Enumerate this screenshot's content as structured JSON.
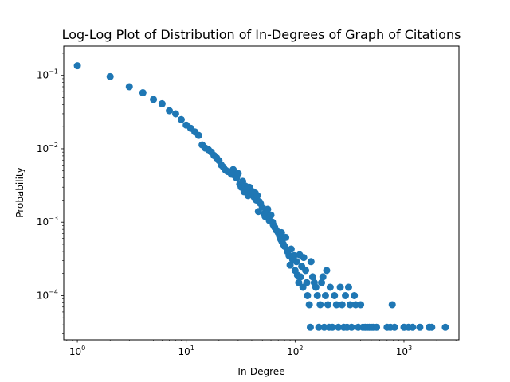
{
  "chart_data": {
    "type": "scatter",
    "title": "Log-Log Plot of Distribution of In-Degrees of Graph of Citations",
    "xlabel": "In-Degree",
    "ylabel": "Probability",
    "xscale": "log",
    "yscale": "log",
    "xlim": [
      0.75,
      3200
    ],
    "ylim": [
      2.5e-05,
      0.25
    ],
    "grid": false,
    "marker_color": "#1f77b4",
    "x_ticks": [
      {
        "base": "10",
        "exp": "0",
        "value": 1
      },
      {
        "base": "10",
        "exp": "1",
        "value": 10
      },
      {
        "base": "10",
        "exp": "2",
        "value": 100
      },
      {
        "base": "10",
        "exp": "3",
        "value": 1000
      }
    ],
    "y_ticks": [
      {
        "base": "10",
        "exp": "−4",
        "value": 0.0001
      },
      {
        "base": "10",
        "exp": "−3",
        "value": 0.001
      },
      {
        "base": "10",
        "exp": "−2",
        "value": 0.01
      },
      {
        "base": "10",
        "exp": "−1",
        "value": 0.1
      }
    ],
    "points": [
      [
        1,
        0.135
      ],
      [
        2,
        0.096
      ],
      [
        3,
        0.07
      ],
      [
        4,
        0.058
      ],
      [
        5,
        0.047
      ],
      [
        6,
        0.041
      ],
      [
        7,
        0.033
      ],
      [
        8,
        0.03
      ],
      [
        9,
        0.025
      ],
      [
        10,
        0.021
      ],
      [
        11,
        0.019
      ],
      [
        12,
        0.017
      ],
      [
        13,
        0.0152
      ],
      [
        14,
        0.0113
      ],
      [
        15,
        0.0102
      ],
      [
        16,
        0.0097
      ],
      [
        17,
        0.009
      ],
      [
        18,
        0.0081
      ],
      [
        19,
        0.0075
      ],
      [
        20,
        0.0069
      ],
      [
        21,
        0.006
      ],
      [
        22,
        0.0056
      ],
      [
        23,
        0.0051
      ],
      [
        24,
        0.0049
      ],
      [
        25,
        0.0048
      ],
      [
        26,
        0.0045
      ],
      [
        27,
        0.0052
      ],
      [
        28,
        0.0043
      ],
      [
        29,
        0.004
      ],
      [
        30,
        0.0046
      ],
      [
        31,
        0.0033
      ],
      [
        32,
        0.003
      ],
      [
        33,
        0.0036
      ],
      [
        34,
        0.0026
      ],
      [
        35,
        0.0031
      ],
      [
        36,
        0.0028
      ],
      [
        37,
        0.0023
      ],
      [
        38,
        0.003
      ],
      [
        39,
        0.0025
      ],
      [
        40,
        0.0024
      ],
      [
        41,
        0.0026
      ],
      [
        42,
        0.0022
      ],
      [
        43,
        0.0025
      ],
      [
        44,
        0.002
      ],
      [
        45,
        0.0023
      ],
      [
        46,
        0.0014
      ],
      [
        47,
        0.0019
      ],
      [
        48,
        0.0018
      ],
      [
        50,
        0.0016
      ],
      [
        52,
        0.0013
      ],
      [
        53,
        0.0012
      ],
      [
        55,
        0.0014
      ],
      [
        56,
        0.0015
      ],
      [
        58,
        0.00105
      ],
      [
        60,
        0.00125
      ],
      [
        62,
        0.001
      ],
      [
        63,
        0.00092
      ],
      [
        65,
        0.00085
      ],
      [
        67,
        0.00078
      ],
      [
        70,
        0.00072
      ],
      [
        72,
        0.00065
      ],
      [
        74,
        0.00058
      ],
      [
        76,
        0.00054
      ],
      [
        78,
        0.0005
      ],
      [
        80,
        0.00047
      ],
      [
        75,
        0.00072
      ],
      [
        85,
        0.0004
      ],
      [
        82,
        0.00062
      ],
      [
        88,
        0.00035
      ],
      [
        90,
        0.00026
      ],
      [
        92,
        0.00043
      ],
      [
        95,
        0.00031
      ],
      [
        98,
        0.00035
      ],
      [
        100,
        0.00022
      ],
      [
        103,
        0.00029
      ],
      [
        105,
        0.00019
      ],
      [
        108,
        0.00015
      ],
      [
        110,
        0.00036
      ],
      [
        112,
        0.00018
      ],
      [
        115,
        0.00025
      ],
      [
        118,
        0.00013
      ],
      [
        120,
        0.00033
      ],
      [
        125,
        0.00022
      ],
      [
        128,
        0.00015
      ],
      [
        130,
        0.0001
      ],
      [
        135,
        7.5e-05
      ],
      [
        138,
        3.7e-05
      ],
      [
        140,
        0.00029
      ],
      [
        145,
        0.00018
      ],
      [
        150,
        0.00015
      ],
      [
        155,
        0.00013
      ],
      [
        160,
        0.0001
      ],
      [
        165,
        3.7e-05
      ],
      [
        170,
        7.5e-05
      ],
      [
        175,
        0.00015
      ],
      [
        180,
        0.00018
      ],
      [
        185,
        3.7e-05
      ],
      [
        190,
        0.0001
      ],
      [
        195,
        0.00022
      ],
      [
        200,
        7.5e-05
      ],
      [
        205,
        3.7e-05
      ],
      [
        210,
        0.00013
      ],
      [
        220,
        3.7e-05
      ],
      [
        230,
        0.0001
      ],
      [
        240,
        7.5e-05
      ],
      [
        250,
        3.7e-05
      ],
      [
        260,
        0.00013
      ],
      [
        270,
        7.5e-05
      ],
      [
        280,
        3.7e-05
      ],
      [
        290,
        0.0001
      ],
      [
        300,
        3.7e-05
      ],
      [
        310,
        0.00013
      ],
      [
        320,
        7.5e-05
      ],
      [
        330,
        3.7e-05
      ],
      [
        350,
        0.0001
      ],
      [
        360,
        7.5e-05
      ],
      [
        380,
        3.7e-05
      ],
      [
        400,
        7.5e-05
      ],
      [
        420,
        3.7e-05
      ],
      [
        440,
        3.7e-05
      ],
      [
        460,
        3.7e-05
      ],
      [
        480,
        3.7e-05
      ],
      [
        500,
        3.7e-05
      ],
      [
        520,
        3.7e-05
      ],
      [
        560,
        3.7e-05
      ],
      [
        700,
        3.7e-05
      ],
      [
        750,
        3.7e-05
      ],
      [
        780,
        7.5e-05
      ],
      [
        820,
        3.7e-05
      ],
      [
        1000,
        3.7e-05
      ],
      [
        1100,
        3.7e-05
      ],
      [
        1200,
        3.7e-05
      ],
      [
        1400,
        3.7e-05
      ],
      [
        1700,
        3.7e-05
      ],
      [
        1800,
        3.7e-05
      ],
      [
        2400,
        3.7e-05
      ]
    ]
  }
}
